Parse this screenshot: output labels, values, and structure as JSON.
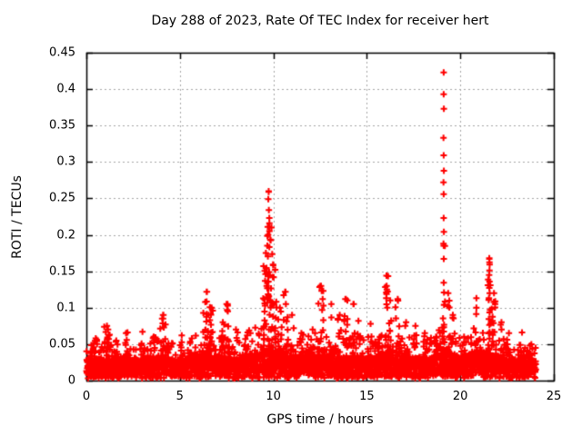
{
  "chart_data": {
    "type": "scatter",
    "title": "Day 288 of 2023, Rate Of TEC Index for receiver hert",
    "xlabel": "GPS time / hours",
    "ylabel": "ROTI / TECUs",
    "xlim": [
      0,
      25
    ],
    "ylim": [
      0,
      0.45
    ],
    "xticks": {
      "values": [
        0,
        5,
        10,
        15,
        20,
        25
      ],
      "labels": [
        "0",
        "5",
        "10",
        "15",
        "20",
        "25"
      ]
    },
    "yticks": {
      "values": [
        0,
        0.05,
        0.1,
        0.15,
        0.2,
        0.25,
        0.3,
        0.35,
        0.4,
        0.45
      ],
      "labels": [
        "0",
        "0.05",
        "0.1",
        "0.15",
        "0.2",
        "0.25",
        "0.3",
        "0.35",
        "0.4",
        "0.45"
      ]
    },
    "grid": {
      "show": true,
      "dash": [
        2,
        3
      ]
    },
    "legend": {
      "show": false
    },
    "colors": {
      "marker": "#ff0000",
      "grid": "#a6a6a6",
      "axis": "#000000",
      "background": "#ffffff"
    },
    "marker": {
      "shape": "plus",
      "size": 7,
      "stroke_width": 2
    },
    "series": [
      {
        "name": "ROTI",
        "baseline": {
          "t_start": 0.0,
          "t_end": 24.05,
          "points_per_hour": 130,
          "floor": 0.003,
          "band_top_by_hour": [
            0.03,
            0.032,
            0.03,
            0.03,
            0.033,
            0.03,
            0.038,
            0.036,
            0.031,
            0.043,
            0.04,
            0.034,
            0.038,
            0.036,
            0.034,
            0.032,
            0.04,
            0.036,
            0.031,
            0.043,
            0.034,
            0.044,
            0.036,
            0.03,
            0.028
          ]
        },
        "clusters_t_peak_width_count": [
          [
            0.5,
            0.058,
            0.25,
            10
          ],
          [
            1.1,
            0.075,
            0.3,
            14
          ],
          [
            1.6,
            0.055,
            0.2,
            8
          ],
          [
            2.2,
            0.066,
            0.2,
            8
          ],
          [
            3.0,
            0.067,
            0.25,
            10
          ],
          [
            3.6,
            0.06,
            0.2,
            8
          ],
          [
            4.1,
            0.09,
            0.3,
            16
          ],
          [
            5.1,
            0.062,
            0.2,
            8
          ],
          [
            6.45,
            0.122,
            0.45,
            30
          ],
          [
            6.7,
            0.1,
            0.2,
            10
          ],
          [
            7.3,
            0.08,
            0.2,
            8
          ],
          [
            7.5,
            0.105,
            0.3,
            16
          ],
          [
            8.0,
            0.07,
            0.2,
            8
          ],
          [
            8.6,
            0.062,
            0.2,
            6
          ],
          [
            9.6,
            0.175,
            0.35,
            40
          ],
          [
            9.75,
            0.26,
            0.15,
            14
          ],
          [
            9.9,
            0.21,
            0.2,
            20
          ],
          [
            10.1,
            0.152,
            0.2,
            14
          ],
          [
            10.35,
            0.1,
            0.2,
            10
          ],
          [
            10.65,
            0.122,
            0.25,
            14
          ],
          [
            11.0,
            0.09,
            0.2,
            8
          ],
          [
            11.5,
            0.065,
            0.2,
            6
          ],
          [
            12.1,
            0.07,
            0.2,
            6
          ],
          [
            12.55,
            0.13,
            0.3,
            18
          ],
          [
            13.1,
            0.105,
            0.25,
            10
          ],
          [
            13.55,
            0.09,
            0.2,
            8
          ],
          [
            13.85,
            0.112,
            0.25,
            12
          ],
          [
            14.3,
            0.105,
            0.2,
            8
          ],
          [
            14.55,
            0.082,
            0.2,
            8
          ],
          [
            15.2,
            0.078,
            0.3,
            10
          ],
          [
            15.7,
            0.06,
            0.2,
            6
          ],
          [
            16.05,
            0.144,
            0.2,
            16
          ],
          [
            16.25,
            0.11,
            0.15,
            8
          ],
          [
            16.65,
            0.112,
            0.25,
            14
          ],
          [
            17.1,
            0.08,
            0.2,
            8
          ],
          [
            17.6,
            0.075,
            0.25,
            8
          ],
          [
            18.1,
            0.065,
            0.25,
            8
          ],
          [
            18.7,
            0.06,
            0.2,
            6
          ],
          [
            19.11,
            0.185,
            0.15,
            20
          ],
          [
            19.35,
            0.12,
            0.15,
            10
          ],
          [
            19.6,
            0.09,
            0.2,
            8
          ],
          [
            20.2,
            0.06,
            0.2,
            6
          ],
          [
            20.86,
            0.1,
            0.1,
            5
          ],
          [
            21.55,
            0.168,
            0.15,
            18
          ],
          [
            21.8,
            0.12,
            0.25,
            16
          ],
          [
            22.2,
            0.08,
            0.25,
            10
          ],
          [
            22.6,
            0.065,
            0.2,
            6
          ],
          [
            23.3,
            0.066,
            0.2,
            8
          ],
          [
            23.8,
            0.05,
            0.15,
            5
          ]
        ],
        "peak_points": [
          [
            19.11,
            0.423
          ],
          [
            19.11,
            0.393
          ],
          [
            19.12,
            0.373
          ],
          [
            19.1,
            0.333
          ],
          [
            19.11,
            0.309
          ],
          [
            19.12,
            0.288
          ],
          [
            19.1,
            0.272
          ],
          [
            19.11,
            0.256
          ],
          [
            19.11,
            0.223
          ],
          [
            19.12,
            0.204
          ],
          [
            19.1,
            0.188
          ],
          [
            9.75,
            0.259
          ],
          [
            9.73,
            0.249
          ],
          [
            9.76,
            0.234
          ],
          [
            9.7,
            0.211
          ],
          [
            9.79,
            0.205
          ],
          [
            9.72,
            0.2
          ],
          [
            21.55,
            0.167
          ],
          [
            21.56,
            0.151
          ],
          [
            21.54,
            0.145
          ],
          [
            21.56,
            0.136
          ],
          [
            21.55,
            0.127
          ],
          [
            21.57,
            0.12
          ],
          [
            21.53,
            0.113
          ],
          [
            16.05,
            0.144
          ],
          [
            16.07,
            0.125
          ],
          [
            16.04,
            0.121
          ],
          [
            20.86,
            0.113
          ],
          [
            20.82,
            0.066
          ],
          [
            12.52,
            0.13
          ],
          [
            10.63,
            0.122
          ],
          [
            6.43,
            0.122
          ],
          [
            13.88,
            0.112
          ],
          [
            7.55,
            0.105
          ],
          [
            16.66,
            0.111
          ],
          [
            14.28,
            0.105
          ],
          [
            13.1,
            0.105
          ],
          [
            4.12,
            0.09
          ]
        ]
      }
    ]
  }
}
